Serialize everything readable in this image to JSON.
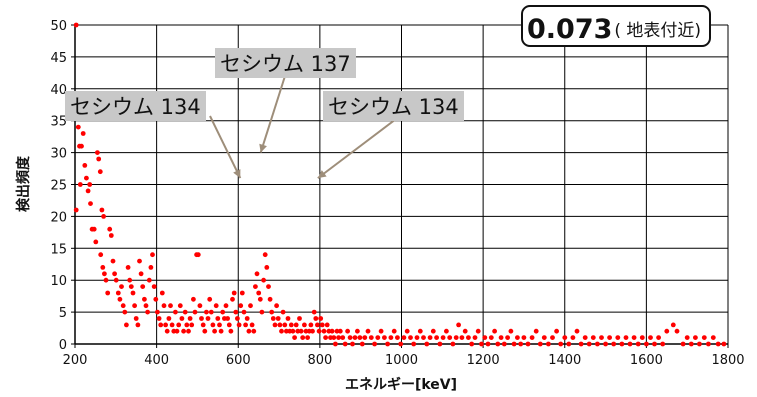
{
  "chart_data": {
    "type": "scatter",
    "xlabel": "エネルギー[keV]",
    "ylabel": "検出頻度",
    "xlim": [
      200,
      1800
    ],
    "ylim": [
      0,
      50
    ],
    "x_ticks": [
      200,
      400,
      600,
      800,
      1000,
      1200,
      1400,
      1600,
      1800
    ],
    "y_ticks": [
      0,
      5,
      10,
      15,
      20,
      25,
      30,
      35,
      40,
      45,
      50
    ],
    "grid": true,
    "marker_color": "#ff0000",
    "series": [
      {
        "points": [
          [
            203,
            50
          ],
          [
            203,
            21
          ],
          [
            208,
            34
          ],
          [
            211,
            31
          ],
          [
            216,
            31
          ],
          [
            213,
            25
          ],
          [
            220,
            33
          ],
          [
            224,
            28
          ],
          [
            228,
            26
          ],
          [
            232,
            24
          ],
          [
            236,
            25
          ],
          [
            238,
            22
          ],
          [
            242,
            18
          ],
          [
            247,
            18
          ],
          [
            251,
            16
          ],
          [
            255,
            30
          ],
          [
            258,
            29
          ],
          [
            262,
            27
          ],
          [
            266,
            21
          ],
          [
            270,
            20
          ],
          [
            263,
            14
          ],
          [
            268,
            12
          ],
          [
            272,
            11
          ],
          [
            276,
            10
          ],
          [
            280,
            8
          ],
          [
            285,
            18
          ],
          [
            289,
            17
          ],
          [
            293,
            13
          ],
          [
            297,
            11
          ],
          [
            301,
            10
          ],
          [
            306,
            8
          ],
          [
            310,
            7
          ],
          [
            314,
            9
          ],
          [
            318,
            6
          ],
          [
            322,
            5
          ],
          [
            326,
            3
          ],
          [
            330,
            12
          ],
          [
            334,
            10
          ],
          [
            338,
            9
          ],
          [
            342,
            8
          ],
          [
            346,
            6
          ],
          [
            350,
            4
          ],
          [
            354,
            3
          ],
          [
            358,
            13
          ],
          [
            362,
            11
          ],
          [
            366,
            9
          ],
          [
            370,
            7
          ],
          [
            374,
            6
          ],
          [
            378,
            5
          ],
          [
            382,
            10
          ],
          [
            386,
            12
          ],
          [
            390,
            14
          ],
          [
            394,
            9
          ],
          [
            398,
            7
          ],
          [
            402,
            5
          ],
          [
            406,
            4
          ],
          [
            410,
            3
          ],
          [
            414,
            8
          ],
          [
            418,
            6
          ],
          [
            422,
            3
          ],
          [
            426,
            2
          ],
          [
            430,
            4
          ],
          [
            434,
            6
          ],
          [
            438,
            3
          ],
          [
            442,
            2
          ],
          [
            446,
            5
          ],
          [
            450,
            2
          ],
          [
            454,
            3
          ],
          [
            458,
            6
          ],
          [
            462,
            4
          ],
          [
            466,
            2
          ],
          [
            470,
            5
          ],
          [
            474,
            3
          ],
          [
            478,
            2
          ],
          [
            482,
            4
          ],
          [
            486,
            3
          ],
          [
            490,
            7
          ],
          [
            494,
            5
          ],
          [
            498,
            14
          ],
          [
            502,
            14
          ],
          [
            506,
            6
          ],
          [
            510,
            4
          ],
          [
            514,
            3
          ],
          [
            518,
            2
          ],
          [
            522,
            5
          ],
          [
            526,
            4
          ],
          [
            530,
            7
          ],
          [
            534,
            5
          ],
          [
            538,
            3
          ],
          [
            542,
            2
          ],
          [
            546,
            6
          ],
          [
            550,
            4
          ],
          [
            554,
            3
          ],
          [
            558,
            2
          ],
          [
            562,
            5
          ],
          [
            566,
            4
          ],
          [
            570,
            6
          ],
          [
            574,
            4
          ],
          [
            578,
            3
          ],
          [
            582,
            2
          ],
          [
            586,
            7
          ],
          [
            590,
            8
          ],
          [
            594,
            5
          ],
          [
            598,
            4
          ],
          [
            602,
            3
          ],
          [
            606,
            6
          ],
          [
            610,
            8
          ],
          [
            614,
            5
          ],
          [
            618,
            3
          ],
          [
            622,
            4
          ],
          [
            626,
            2
          ],
          [
            630,
            6
          ],
          [
            634,
            3
          ],
          [
            638,
            2
          ],
          [
            642,
            9
          ],
          [
            646,
            11
          ],
          [
            650,
            8
          ],
          [
            654,
            7
          ],
          [
            658,
            5
          ],
          [
            662,
            10
          ],
          [
            666,
            14
          ],
          [
            670,
            12
          ],
          [
            674,
            9
          ],
          [
            678,
            7
          ],
          [
            682,
            5
          ],
          [
            686,
            4
          ],
          [
            690,
            3
          ],
          [
            694,
            6
          ],
          [
            698,
            4
          ],
          [
            702,
            3
          ],
          [
            706,
            2
          ],
          [
            710,
            5
          ],
          [
            714,
            3
          ],
          [
            718,
            2
          ],
          [
            722,
            4
          ],
          [
            726,
            2
          ],
          [
            730,
            3
          ],
          [
            734,
            2
          ],
          [
            738,
            1
          ],
          [
            742,
            3
          ],
          [
            746,
            2
          ],
          [
            750,
            4
          ],
          [
            754,
            2
          ],
          [
            758,
            1
          ],
          [
            762,
            3
          ],
          [
            766,
            2
          ],
          [
            770,
            1
          ],
          [
            774,
            2
          ],
          [
            778,
            3
          ],
          [
            782,
            2
          ],
          [
            786,
            5
          ],
          [
            790,
            4
          ],
          [
            794,
            3
          ],
          [
            798,
            2
          ],
          [
            802,
            4
          ],
          [
            806,
            3
          ],
          [
            810,
            2
          ],
          [
            814,
            1
          ],
          [
            818,
            3
          ],
          [
            822,
            2
          ],
          [
            826,
            1
          ],
          [
            830,
            2
          ],
          [
            834,
            1
          ],
          [
            838,
            0
          ],
          [
            842,
            2
          ],
          [
            846,
            1
          ],
          [
            850,
            2
          ],
          [
            856,
            1
          ],
          [
            862,
            0
          ],
          [
            868,
            2
          ],
          [
            874,
            1
          ],
          [
            880,
            0
          ],
          [
            886,
            1
          ],
          [
            892,
            2
          ],
          [
            898,
            1
          ],
          [
            904,
            0
          ],
          [
            910,
            1
          ],
          [
            918,
            2
          ],
          [
            926,
            1
          ],
          [
            934,
            0
          ],
          [
            942,
            1
          ],
          [
            950,
            2
          ],
          [
            958,
            1
          ],
          [
            966,
            0
          ],
          [
            974,
            1
          ],
          [
            982,
            2
          ],
          [
            990,
            1
          ],
          [
            998,
            0
          ],
          [
            1006,
            1
          ],
          [
            1014,
            2
          ],
          [
            1022,
            1
          ],
          [
            1030,
            0
          ],
          [
            1038,
            1
          ],
          [
            1046,
            2
          ],
          [
            1054,
            1
          ],
          [
            1062,
            0
          ],
          [
            1070,
            1
          ],
          [
            1078,
            2
          ],
          [
            1086,
            1
          ],
          [
            1094,
            0
          ],
          [
            1102,
            1
          ],
          [
            1110,
            2
          ],
          [
            1118,
            1
          ],
          [
            1126,
            0
          ],
          [
            1134,
            1
          ],
          [
            1140,
            3
          ],
          [
            1148,
            1
          ],
          [
            1156,
            2
          ],
          [
            1164,
            1
          ],
          [
            1172,
            0
          ],
          [
            1180,
            1
          ],
          [
            1188,
            2
          ],
          [
            1196,
            0
          ],
          [
            1204,
            1
          ],
          [
            1212,
            0
          ],
          [
            1220,
            1
          ],
          [
            1228,
            2
          ],
          [
            1236,
            0
          ],
          [
            1244,
            1
          ],
          [
            1252,
            0
          ],
          [
            1260,
            1
          ],
          [
            1268,
            2
          ],
          [
            1276,
            0
          ],
          [
            1284,
            1
          ],
          [
            1292,
            0
          ],
          [
            1300,
            1
          ],
          [
            1310,
            0
          ],
          [
            1320,
            1
          ],
          [
            1330,
            2
          ],
          [
            1340,
            0
          ],
          [
            1350,
            1
          ],
          [
            1360,
            0
          ],
          [
            1370,
            1
          ],
          [
            1380,
            2
          ],
          [
            1390,
            0
          ],
          [
            1400,
            1
          ],
          [
            1410,
            0
          ],
          [
            1420,
            1
          ],
          [
            1430,
            2
          ],
          [
            1440,
            0
          ],
          [
            1450,
            1
          ],
          [
            1460,
            0
          ],
          [
            1470,
            1
          ],
          [
            1480,
            0
          ],
          [
            1490,
            1
          ],
          [
            1500,
            0
          ],
          [
            1510,
            1
          ],
          [
            1520,
            0
          ],
          [
            1530,
            1
          ],
          [
            1540,
            0
          ],
          [
            1550,
            1
          ],
          [
            1560,
            0
          ],
          [
            1570,
            1
          ],
          [
            1580,
            0
          ],
          [
            1590,
            1
          ],
          [
            1600,
            0
          ],
          [
            1610,
            1
          ],
          [
            1620,
            0
          ],
          [
            1630,
            1
          ],
          [
            1640,
            0
          ],
          [
            1650,
            2
          ],
          [
            1666,
            3
          ],
          [
            1675,
            2
          ],
          [
            1690,
            0
          ],
          [
            1700,
            1
          ],
          [
            1710,
            0
          ],
          [
            1720,
            1
          ],
          [
            1730,
            0
          ],
          [
            1742,
            1
          ],
          [
            1752,
            0
          ],
          [
            1764,
            1
          ],
          [
            1776,
            0
          ],
          [
            1790,
            0
          ]
        ]
      }
    ],
    "annotations": [
      {
        "text": "セシウム 137",
        "x": 655,
        "y": 30
      },
      {
        "text": "セシウム 134",
        "x": 605,
        "y": 26
      },
      {
        "text": "セシウム 134",
        "x": 795,
        "y": 26
      }
    ],
    "badge": {
      "value": "0.073",
      "note": "( 地表付近)"
    }
  }
}
